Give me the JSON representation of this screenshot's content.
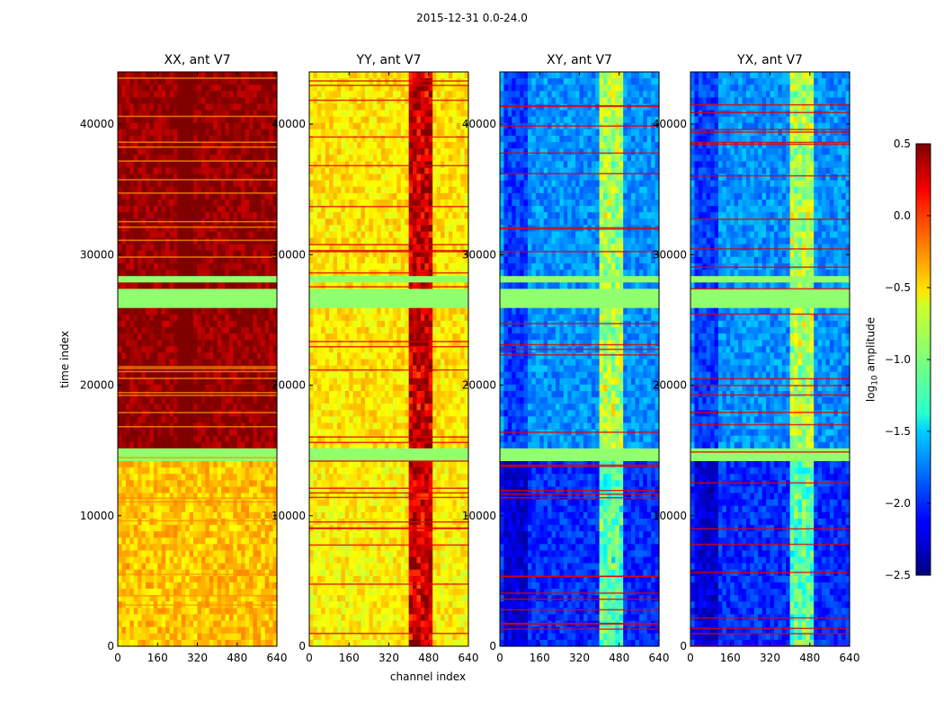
{
  "chart_data": {
    "type": "heatmap",
    "suptitle": "2015-12-31 0.0-24.0",
    "xlabel": "channel index",
    "ylabel": "time index",
    "colorbar_label_main": "log",
    "colorbar_label_sub": "10",
    "colorbar_label_tail": " amplitude",
    "colormap": "jet",
    "x_range": [
      0,
      640
    ],
    "y_range": [
      0,
      44000
    ],
    "x_ticks": [
      "0",
      "160",
      "320",
      "480",
      "640"
    ],
    "y_ticks": [
      "0",
      "10000",
      "20000",
      "30000",
      "40000"
    ],
    "x_tick_values": [
      0,
      160,
      320,
      480,
      640
    ],
    "y_tick_values": [
      0,
      10000,
      20000,
      30000,
      40000
    ],
    "colorbar_range": [
      -2.5,
      0.5
    ],
    "colorbar_ticks": [
      "0.5",
      "0.0",
      "−0.5",
      "−1.0",
      "−1.5",
      "−2.0",
      "−2.5"
    ],
    "colorbar_tick_values": [
      0.5,
      0.0,
      -0.5,
      -1.0,
      -1.5,
      -2.0,
      -2.5
    ],
    "flagged_time_ranges": [
      [
        14000,
        15000
      ],
      [
        25800,
        27200
      ],
      [
        28000,
        28500
      ]
    ],
    "panels": [
      {
        "title": "XX, ant V7",
        "base_level": 0.45,
        "lower_level": -0.45
      },
      {
        "title": "YY, ant V7",
        "base_level": -0.55,
        "lower_level": -0.6
      },
      {
        "title": "XY, ant V7",
        "base_level": -1.7,
        "lower_level": -2.0
      },
      {
        "title": "YX, ant V7",
        "base_level": -1.7,
        "lower_level": -2.0
      }
    ]
  }
}
